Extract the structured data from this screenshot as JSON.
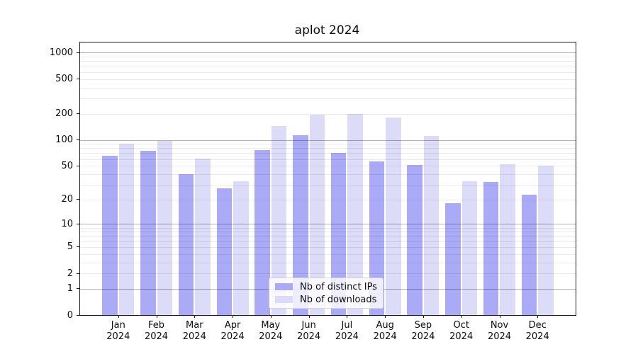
{
  "title": "aplot 2024",
  "legend": {
    "items": [
      {
        "label": "Nb of distinct IPs"
      },
      {
        "label": "Nb of downloads"
      }
    ]
  },
  "y_axis": {
    "tick_labels": [
      "0",
      "1",
      "2",
      "5",
      "10",
      "20",
      "50",
      "100",
      "200",
      "500",
      "1000"
    ]
  },
  "x_axis": {
    "year_label": "2024",
    "months": [
      "Jan",
      "Feb",
      "Mar",
      "Apr",
      "May",
      "Jun",
      "Jul",
      "Aug",
      "Sep",
      "Oct",
      "Nov",
      "Dec"
    ]
  },
  "chart_data": {
    "type": "bar",
    "title": "aplot 2024",
    "categories": [
      "Jan 2024",
      "Feb 2024",
      "Mar 2024",
      "Apr 2024",
      "May 2024",
      "Jun 2024",
      "Jul 2024",
      "Aug 2024",
      "Sep 2024",
      "Oct 2024",
      "Nov 2024",
      "Dec 2024"
    ],
    "series": [
      {
        "name": "Nb of distinct IPs",
        "color": "#aaaaf6",
        "values": [
          65,
          75,
          40,
          27,
          76,
          114,
          70,
          56,
          51,
          18,
          32,
          23
        ]
      },
      {
        "name": "Nb of downloads",
        "color": "#dcdcf8",
        "values": [
          90,
          97,
          61,
          33,
          144,
          195,
          200,
          180,
          110,
          33,
          52,
          50
        ]
      }
    ],
    "xlabel": "",
    "ylabel": "",
    "yscale": "log1p",
    "yticks": [
      0,
      1,
      2,
      5,
      10,
      20,
      50,
      100,
      200,
      500,
      1000
    ],
    "ylim": [
      0,
      1300
    ],
    "grid": true,
    "grid_major_at": [
      1,
      10,
      100,
      1000
    ],
    "legend_position": "lower center"
  }
}
